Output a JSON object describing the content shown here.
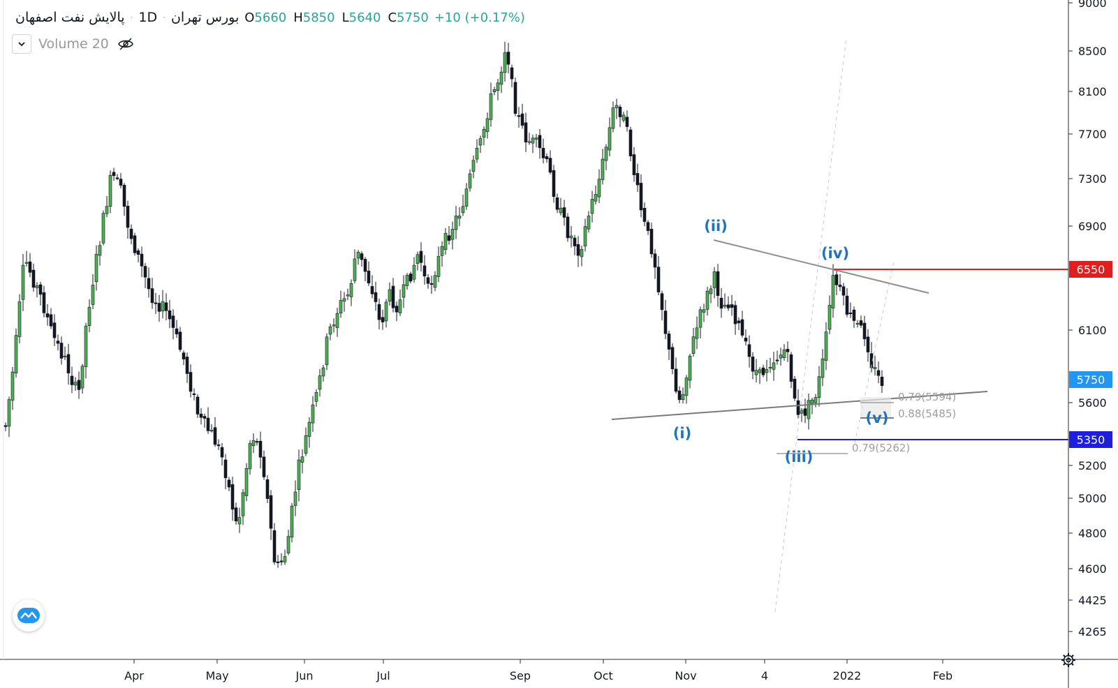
{
  "legend": {
    "symbol": "پالایش نفت اصفهان",
    "interval": "1D",
    "exchange": "بورس تهران",
    "open_label": "O",
    "open_value": "5660",
    "high_label": "H",
    "high_value": "5850",
    "low_label": "L",
    "low_value": "5640",
    "close_label": "C",
    "close_value": "5750",
    "change": "+10 (+0.17%)"
  },
  "study": {
    "label": "Volume 20"
  },
  "icons": {
    "collapse": "chevron-down-icon",
    "hide": "eye-crossed-icon",
    "logo": "tradingview-logo-icon",
    "settings": "gear-icon"
  },
  "colors": {
    "up_candle": "#4caf50",
    "down_candle": "#131722",
    "resistance": "#e01e1e",
    "support": "#1e1edc",
    "wave_label": "#1e73be",
    "current_price": "#2196f3",
    "trendline": "#9e9e9e"
  },
  "chart_data": {
    "type": "candlestick",
    "interval": "1D",
    "y_ticks": [
      4265,
      4425,
      4600,
      4800,
      5000,
      5200,
      5600,
      6100,
      6900,
      7300,
      7700,
      8100,
      8500,
      9000
    ],
    "x_ticks": [
      "Apr",
      "May",
      "Jun",
      "Jul",
      "Sep",
      "Oct",
      "Nov",
      "4",
      "2022",
      "Feb"
    ],
    "price_labels": [
      {
        "name": "resistance",
        "value": "6550"
      },
      {
        "name": "current",
        "value": "5750"
      },
      {
        "name": "support",
        "value": "5350"
      }
    ],
    "waves": [
      "(i)",
      "(ii)",
      "(iii)",
      "(iv)",
      "(v)"
    ],
    "fib_labels": [
      "0.79(5594)",
      "0.88(5485)",
      "0.79(5262)"
    ],
    "last_candle": {
      "open": 5660,
      "high": 5850,
      "low": 5640,
      "close": 5750
    },
    "price_range": [
      4200,
      9000
    ]
  }
}
